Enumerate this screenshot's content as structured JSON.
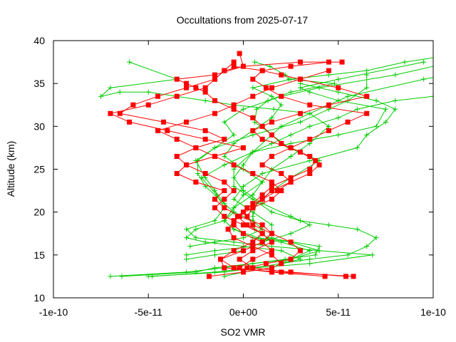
{
  "chart_data": {
    "type": "line",
    "title": "Occultations from 2025-07-17",
    "xlabel": "SO2 VMR",
    "ylabel": "Altitude (km)",
    "xlim": [
      -1e-10,
      1e-10
    ],
    "ylim": [
      10,
      40
    ],
    "x_ticks": [
      -1e-10,
      -5e-11,
      0,
      5e-11,
      1e-10
    ],
    "x_tick_labels": [
      "-1e-10",
      "-5e-11",
      "0e+00",
      "5e-11",
      "1e-10"
    ],
    "y_ticks": [
      10,
      15,
      20,
      25,
      30,
      35,
      40
    ],
    "y_tick_labels": [
      "10",
      "15",
      "20",
      "25",
      "30",
      "35",
      "40"
    ],
    "grid": false,
    "legend": "none",
    "series": [
      {
        "color": "#00cc00",
        "marker": "plus",
        "profiles": [
          {
            "x": [
              -6.4e-11,
              -2.5e-11,
              -1.5e-11,
              5e-12,
              2.2e-11,
              3.8e-11,
              4e-11,
              1.3e-11,
              6e-12,
              5e-12,
              7e-12,
              1.5e-11,
              2.5e-11,
              4e-11,
              2.4e-11,
              1.5e-11,
              6e-12,
              7e-12,
              1.3e-11,
              2.5e-11,
              4.8e-11,
              2.4e-11,
              2.2e-11,
              1.4e-11,
              6e-12
            ],
            "y": [
              12.5,
              13.0,
              13.5,
              14.0,
              14.5,
              15.0,
              16.0,
              17.0,
              18.0,
              19.5,
              21.0,
              22.5,
              24.0,
              26.0,
              27.5,
              29.0,
              30.5,
              32.0,
              33.0,
              34.0,
              35.0,
              35.5,
              36.0,
              37.0,
              37.5
            ]
          },
          {
            "x": [
              -7e-11,
              -3e-11,
              -1e-11,
              5e-12,
              2.5e-11,
              4e-11,
              2.5e-11,
              8e-12,
              -5e-12,
              -1e-11,
              -5e-12,
              0,
              1e-11,
              1.5e-11,
              2.5e-11,
              3.5e-11,
              4.5e-11,
              3.5e-11,
              1.6e-11,
              -5e-12,
              -2e-11,
              -3.5e-11,
              -5e-11,
              -6.5e-11,
              -7.5e-11,
              -7e-11,
              -3.5e-11,
              -6e-11
            ],
            "y": [
              12.5,
              13.0,
              13.5,
              14.0,
              14.5,
              15.5,
              16.5,
              17.0,
              18.0,
              19.0,
              20.5,
              22.0,
              23.5,
              25.0,
              26.5,
              28.0,
              30.0,
              31.5,
              32.0,
              32.5,
              33.0,
              33.5,
              34.0,
              34.0,
              33.5,
              34.5,
              35.5,
              37.5
            ]
          },
          {
            "x": [
              -5e-11,
              -1e-11,
              6e-12,
              3.5e-11,
              6.8e-11,
              4e-11,
              1.5e-11,
              -5e-12,
              -2.5e-11,
              -3e-11,
              -1.5e-11,
              -1e-11,
              -1.4e-11,
              -2.2e-11,
              -1e-11,
              5e-12,
              2.5e-11,
              5e-11,
              7e-11,
              7.5e-11,
              5e-11,
              3.5e-11,
              3e-11,
              5e-11,
              9.5e-11
            ],
            "y": [
              12.5,
              13.0,
              13.5,
              14.0,
              15.0,
              15.5,
              16.0,
              16.5,
              17.0,
              18.0,
              19.0,
              20.5,
              22.0,
              24.0,
              25.5,
              27.0,
              28.0,
              29.0,
              30.0,
              32.0,
              33.0,
              34.0,
              34.5,
              35.5,
              37.5
            ]
          },
          {
            "x": [
              -4.8e-11,
              -1.5e-11,
              5e-12,
              2e-11,
              3e-11,
              2e-11,
              0,
              -2e-11,
              -3e-11,
              -2.5e-11,
              -1e-11,
              -5e-12,
              -2e-11,
              -2.4e-11,
              -2.4e-11,
              -1.5e-11,
              -5e-12,
              -1e-11,
              0,
              2e-11,
              4e-11,
              8e-11,
              1.1e-10,
              1.2e-10
            ],
            "y": [
              12.5,
              13.0,
              13.5,
              14.0,
              14.5,
              15.5,
              16.0,
              16.5,
              17.0,
              18.0,
              19.0,
              20.0,
              23.0,
              24.5,
              26.0,
              27.5,
              29.0,
              30.5,
              32.0,
              33.5,
              34.5,
              36.0,
              37.5,
              38.5
            ]
          },
          {
            "x": [
              -1e-11,
              0,
              1.5e-11,
              2.5e-11,
              3.5e-11,
              2e-11,
              5e-12,
              -5e-12,
              -1e-11,
              -5e-12,
              5e-12,
              1e-11,
              0,
              -1e-11,
              -5e-12,
              5e-12,
              1.5e-11,
              2e-11,
              1.5e-11,
              5e-12,
              2.5e-11,
              4.5e-11,
              6.5e-11,
              8.5e-11,
              1.15e-10
            ],
            "y": [
              12.5,
              13.0,
              13.5,
              14.5,
              15.5,
              16.5,
              17.0,
              18.0,
              19.0,
              20.5,
              22.0,
              23.5,
              25.0,
              26.5,
              28.0,
              29.5,
              31.0,
              32.5,
              33.5,
              34.5,
              35.5,
              36.0,
              36.5,
              37.5,
              38.5
            ]
          },
          {
            "x": [
              -3e-11,
              -1.5e-11,
              0,
              1e-11,
              2.5e-11,
              3.5e-11,
              2.5e-11,
              1e-11,
              0,
              -5e-12,
              0,
              5e-12,
              1.5e-11,
              2.5e-11,
              3.5e-11,
              5e-11,
              6e-11,
              8e-11,
              1e-10,
              1.1e-10,
              1.15e-10
            ],
            "y": [
              14.5,
              15.0,
              15.5,
              16.5,
              17.5,
              18.5,
              19.5,
              21.0,
              22.5,
              24.0,
              25.5,
              27.0,
              28.0,
              29.0,
              30.0,
              31.0,
              32.0,
              33.0,
              33.5,
              34.0,
              32.5
            ]
          },
          {
            "x": [
              2e-11,
              3.5e-11,
              5.5e-11,
              6.5e-11,
              7e-11,
              6e-11,
              4.5e-11,
              3e-11,
              1.5e-11,
              5e-12,
              -5e-12,
              -5e-12,
              5e-12,
              2e-11,
              5.5e-11,
              9.5e-11,
              1.45e-10
            ],
            "y": [
              14.0,
              14.5,
              15.0,
              16.0,
              17.0,
              18.0,
              18.5,
              19.0,
              20.0,
              21.5,
              23.0,
              25.0,
              27.0,
              30.0,
              33.5,
              35.5,
              37.5
            ]
          },
          {
            "x": [
              -3e-11,
              -1.5e-11,
              5e-12,
              1.5e-11,
              1.5e-11,
              5e-12,
              -5e-12,
              0,
              1e-11,
              3.5e-11,
              6e-11,
              6.5e-11,
              7.5e-11,
              8e-11,
              7e-11,
              5e-11,
              3e-11
            ],
            "y": [
              15.0,
              15.5,
              16.0,
              17.0,
              18.5,
              20.0,
              21.5,
              23.0,
              24.5,
              26.0,
              27.5,
              29.0,
              30.5,
              32.0,
              33.0,
              34.0,
              35.0
            ]
          },
          {
            "x": [
              -2.8e-11,
              -1.5e-11,
              0,
              1e-11,
              5e-12,
              -5e-12,
              -1e-11,
              -1.5e-11,
              -2e-11,
              -2.5e-11,
              -1.5e-11,
              5e-12,
              3e-11,
              4.5e-11,
              5.5e-11,
              6.5e-11,
              6.5e-11
            ],
            "y": [
              16.0,
              16.5,
              17.0,
              18.0,
              19.0,
              20.0,
              21.0,
              22.5,
              24.0,
              26.0,
              27.5,
              29.0,
              30.5,
              32.0,
              33.0,
              34.5,
              36.0
            ]
          }
        ]
      },
      {
        "color": "#ff0000",
        "marker": "square",
        "profiles": [
          {
            "x": [
              5.4e-11,
              2.5e-11,
              5e-12,
              -2e-12,
              5e-12,
              1.5e-11,
              1e-11,
              2e-12,
              -3e-12,
              2e-12,
              1e-11,
              1.8e-11,
              2.5e-11,
              2e-11,
              1e-11,
              1.5e-11,
              2.5e-11,
              3.5e-11,
              4.5e-11,
              5.5e-11,
              6.5e-11,
              3.5e-11,
              2e-11,
              1.2e-11,
              5e-12,
              1e-11,
              2.5e-11,
              4.5e-11
            ],
            "y": [
              12.5,
              13.0,
              13.5,
              14.5,
              15.5,
              16.5,
              17.5,
              18.5,
              19.5,
              20.5,
              21.5,
              22.5,
              23.5,
              24.5,
              25.5,
              26.5,
              27.5,
              28.5,
              29.5,
              30.5,
              31.5,
              32.5,
              33.5,
              34.5,
              35.5,
              36.5,
              37.0,
              37.5
            ]
          },
          {
            "x": [
              5.8e-11,
              2e-11,
              -1e-11,
              -1.2e-11,
              0,
              1e-11,
              1.5e-11,
              1e-11,
              -2e-12,
              -1e-11,
              -1.5e-11,
              -1e-11,
              -2.5e-11,
              -3.5e-11,
              -3e-11,
              -1.5e-11,
              0,
              -2e-11,
              -4e-11,
              -6e-11,
              -7e-11,
              -5e-11,
              -3.5e-11,
              -2e-11,
              -1.5e-11,
              -1e-11,
              0,
              3e-11,
              5.2e-11
            ],
            "y": [
              12.5,
              13.0,
              13.5,
              14.5,
              15.5,
              16.5,
              17.5,
              18.5,
              19.5,
              20.5,
              21.5,
              22.5,
              23.5,
              24.5,
              25.5,
              26.5,
              27.5,
              28.5,
              29.5,
              30.5,
              31.5,
              32.5,
              33.5,
              34.5,
              35.5,
              36.5,
              37.0,
              37.5,
              37.5
            ]
          },
          {
            "x": [
              4.3e-11,
              1.5e-11,
              -5e-12,
              -1.2e-11,
              -5e-12,
              5e-12,
              1e-11,
              0,
              -1e-11,
              -1.5e-11,
              -1e-11,
              -5e-12,
              -1e-11,
              -2e-11,
              -3e-11,
              -3.5e-11,
              -2.5e-11,
              -1e-11,
              -2e-11,
              -4.2e-11,
              -6.5e-11,
              -5.8e-11,
              -4.5e-11,
              -3e-11,
              -1.5e-11,
              -1e-11,
              -5e-12
            ],
            "y": [
              12.5,
              13.0,
              13.5,
              14.5,
              15.5,
              16.5,
              17.5,
              18.5,
              19.5,
              20.5,
              21.5,
              22.5,
              23.5,
              24.5,
              25.5,
              26.5,
              27.5,
              28.5,
              29.5,
              30.5,
              31.5,
              32.5,
              33.5,
              34.5,
              35.5,
              36.5,
              37.5
            ]
          },
          {
            "x": [
              -1.8e-11,
              0,
              1.5e-11,
              2e-11,
              1.5e-11,
              5e-12,
              -5e-12,
              -8e-12,
              -5e-12,
              0,
              5e-12,
              1e-11,
              1.5e-11,
              2.5e-11,
              3.5e-11,
              3.8e-11,
              3e-11,
              2e-11,
              1.5e-11,
              1e-11,
              5e-12,
              -5e-12,
              -1.5e-11,
              -2e-11,
              -2.5e-11,
              -3e-11,
              -3.5e-11,
              -1.5e-11,
              0,
              -2e-12
            ],
            "y": [
              12.5,
              13.0,
              13.5,
              14.0,
              15.0,
              16.0,
              17.0,
              18.0,
              19.0,
              20.0,
              21.0,
              22.0,
              23.0,
              24.0,
              25.0,
              26.0,
              27.0,
              28.0,
              29.0,
              30.0,
              31.0,
              32.0,
              33.0,
              34.0,
              34.5,
              35.0,
              35.5,
              36.0,
              37.0,
              38.5
            ]
          },
          {
            "x": [
              2e-12,
              1.2e-11,
              2.5e-11,
              3e-11,
              2.5e-11,
              1.5e-11,
              5e-12,
              2e-12,
              5e-12,
              1e-11,
              1.5e-11,
              2.5e-11,
              3.5e-11,
              4e-11,
              3.5e-11,
              2.5e-11,
              1e-11,
              5e-12,
              1.5e-11,
              3e-11,
              4.5e-11,
              6.5e-11,
              5e-11,
              3e-11,
              2e-11,
              1e-11,
              -5e-12
            ],
            "y": [
              13.5,
              14.0,
              14.5,
              15.5,
              16.5,
              17.5,
              18.5,
              19.5,
              20.5,
              21.5,
              22.5,
              23.5,
              24.5,
              25.5,
              26.5,
              27.5,
              28.5,
              29.5,
              30.5,
              31.5,
              32.5,
              33.5,
              34.5,
              35.5,
              36.0,
              36.5,
              37.0
            ]
          },
          {
            "x": [
              -2e-12,
              5e-12,
              1.5e-11,
              1e-11,
              0,
              -5e-12,
              -3e-12,
              5e-12,
              1.5e-11,
              2e-11,
              1.5e-11,
              5e-12,
              -5e-12,
              -1.5e-11,
              -2.5e-11,
              -3.5e-11,
              -4.5e-11,
              -3e-11,
              -1.5e-11,
              -5e-12,
              5e-12,
              1.5e-11,
              3e-11,
              4.5e-11
            ],
            "y": [
              13.5,
              14.5,
              15.5,
              16.5,
              17.5,
              18.5,
              19.5,
              20.5,
              21.5,
              22.5,
              23.5,
              24.5,
              25.5,
              26.5,
              27.5,
              28.5,
              29.5,
              30.5,
              31.5,
              32.5,
              33.5,
              34.5,
              35.5,
              36.5
            ]
          }
        ]
      }
    ]
  }
}
